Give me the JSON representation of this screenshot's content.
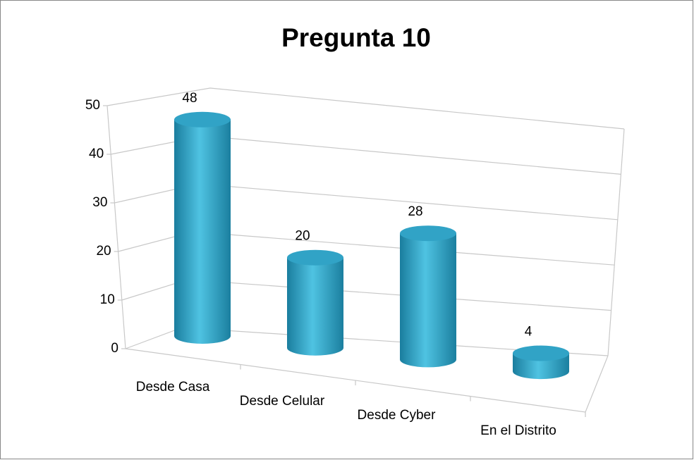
{
  "chart_data": {
    "type": "bar3d",
    "title": "Pregunta 10",
    "categories": [
      "Desde Casa",
      "Desde Celular",
      "Desde Cyber",
      "En el Distrito"
    ],
    "values": [
      48,
      20,
      28,
      4
    ],
    "color": "#31a3c6",
    "ylim": [
      0,
      50
    ],
    "yticks": [
      0,
      10,
      20,
      30,
      40,
      50
    ],
    "grid": true,
    "data_labels": true
  }
}
